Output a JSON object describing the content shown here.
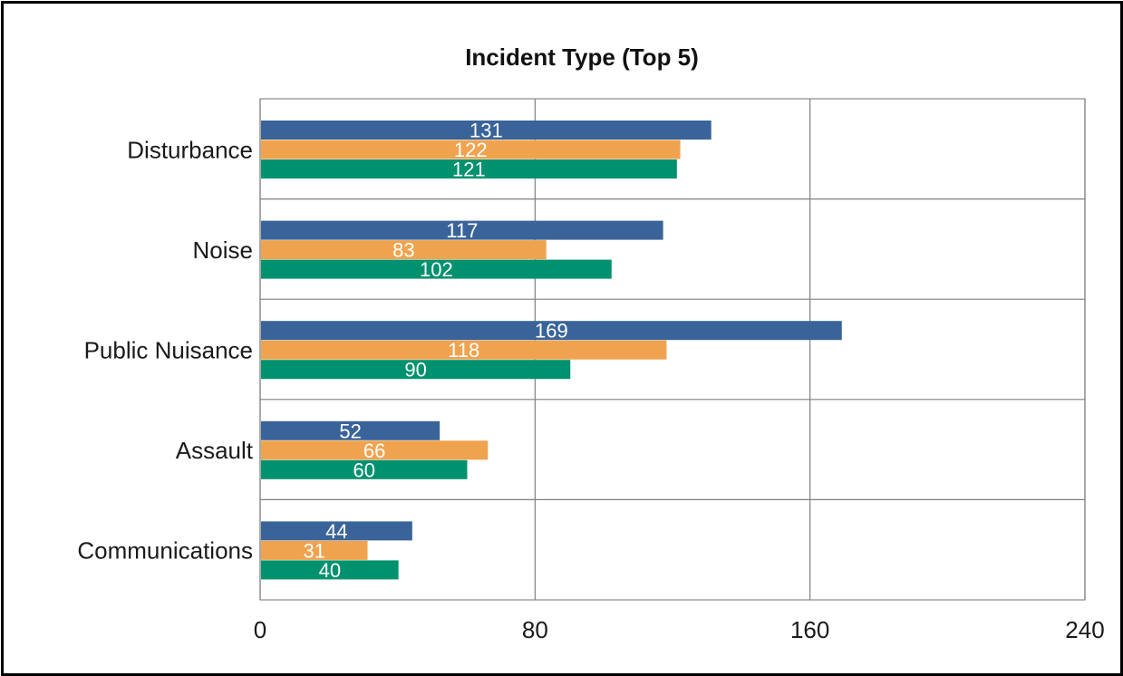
{
  "chart_data": {
    "type": "bar",
    "orientation": "horizontal",
    "title": "Incident Type (Top 5)",
    "categories": [
      "Disturbance",
      "Noise",
      "Public Nuisance",
      "Assault",
      "Communications"
    ],
    "series": [
      {
        "values": [
          131,
          117,
          169,
          52,
          44
        ],
        "color": "#3a6499"
      },
      {
        "values": [
          122,
          83,
          118,
          66,
          31
        ],
        "color": "#f0a34f"
      },
      {
        "values": [
          121,
          102,
          90,
          60,
          40
        ],
        "color": "#00916e"
      }
    ],
    "xlim": [
      0,
      240
    ],
    "xticks": [
      0,
      80,
      160,
      240
    ],
    "grid": true,
    "data_labels": true,
    "legend": "none"
  }
}
